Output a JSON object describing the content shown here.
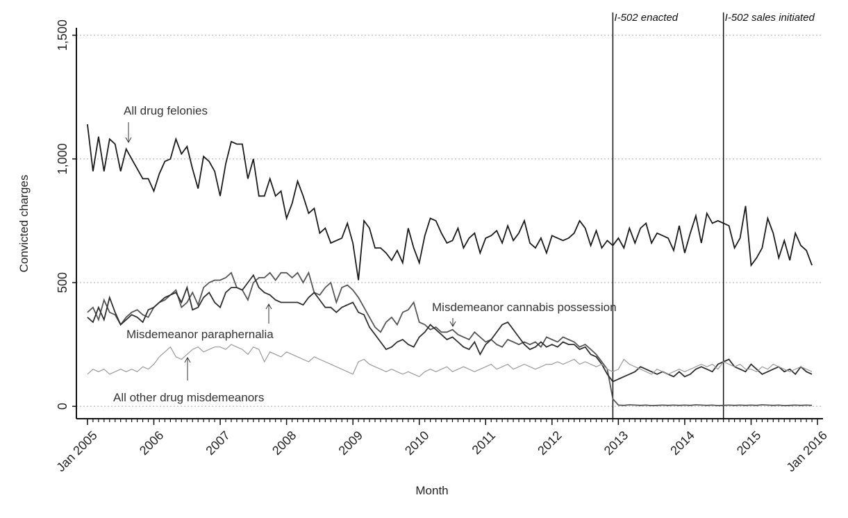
{
  "chart_data": {
    "type": "line",
    "xlabel": "Month",
    "ylabel": "Convicted charges",
    "x": [
      "2005-01",
      "2005-02",
      "2005-03",
      "2005-04",
      "2005-05",
      "2005-06",
      "2005-07",
      "2005-08",
      "2005-09",
      "2005-10",
      "2005-11",
      "2005-12",
      "2006-01",
      "2006-02",
      "2006-03",
      "2006-04",
      "2006-05",
      "2006-06",
      "2006-07",
      "2006-08",
      "2006-09",
      "2006-10",
      "2006-11",
      "2006-12",
      "2007-01",
      "2007-02",
      "2007-03",
      "2007-04",
      "2007-05",
      "2007-06",
      "2007-07",
      "2007-08",
      "2007-09",
      "2007-10",
      "2007-11",
      "2007-12",
      "2008-01",
      "2008-02",
      "2008-03",
      "2008-04",
      "2008-05",
      "2008-06",
      "2008-07",
      "2008-08",
      "2008-09",
      "2008-10",
      "2008-11",
      "2008-12",
      "2009-01",
      "2009-02",
      "2009-03",
      "2009-04",
      "2009-05",
      "2009-06",
      "2009-07",
      "2009-08",
      "2009-09",
      "2009-10",
      "2009-11",
      "2009-12",
      "2010-01",
      "2010-02",
      "2010-03",
      "2010-04",
      "2010-05",
      "2010-06",
      "2010-07",
      "2010-08",
      "2010-09",
      "2010-10",
      "2010-11",
      "2010-12",
      "2011-01",
      "2011-02",
      "2011-03",
      "2011-04",
      "2011-05",
      "2011-06",
      "2011-07",
      "2011-08",
      "2011-09",
      "2011-10",
      "2011-11",
      "2011-12",
      "2012-01",
      "2012-02",
      "2012-03",
      "2012-04",
      "2012-05",
      "2012-06",
      "2012-07",
      "2012-08",
      "2012-09",
      "2012-10",
      "2012-11",
      "2012-12",
      "2013-01",
      "2013-02",
      "2013-03",
      "2013-04",
      "2013-05",
      "2013-06",
      "2013-07",
      "2013-08",
      "2013-09",
      "2013-10",
      "2013-11",
      "2013-12",
      "2014-01",
      "2014-02",
      "2014-03",
      "2014-04",
      "2014-05",
      "2014-06",
      "2014-07",
      "2014-08",
      "2014-09",
      "2014-10",
      "2014-11",
      "2014-12",
      "2015-01",
      "2015-02",
      "2015-03",
      "2015-04",
      "2015-05",
      "2015-06",
      "2015-07",
      "2015-08",
      "2015-09",
      "2015-10",
      "2015-11",
      "2015-12"
    ],
    "series": [
      {
        "name": "All drug felonies",
        "color": "#1a1a1a",
        "values": [
          1140,
          950,
          1090,
          950,
          1080,
          1060,
          950,
          1040,
          1000,
          960,
          920,
          920,
          870,
          940,
          990,
          1000,
          1080,
          1020,
          1050,
          960,
          880,
          1010,
          990,
          950,
          850,
          980,
          1070,
          1060,
          1060,
          920,
          1000,
          850,
          850,
          920,
          850,
          870,
          760,
          820,
          910,
          850,
          780,
          800,
          700,
          720,
          660,
          670,
          680,
          740,
          660,
          510,
          750,
          720,
          640,
          640,
          620,
          590,
          630,
          580,
          720,
          640,
          580,
          690,
          760,
          750,
          700,
          660,
          670,
          720,
          640,
          680,
          700,
          620,
          680,
          690,
          710,
          660,
          730,
          670,
          700,
          750,
          660,
          640,
          680,
          620,
          690,
          680,
          670,
          680,
          700,
          750,
          720,
          650,
          710,
          640,
          670,
          650,
          680,
          640,
          720,
          660,
          720,
          740,
          660,
          700,
          690,
          680,
          630,
          730,
          620,
          700,
          770,
          660,
          780,
          740,
          750,
          740,
          730,
          640,
          680,
          810,
          570,
          600,
          640,
          760,
          700,
          600,
          670,
          590,
          700,
          650,
          630,
          570
        ]
      },
      {
        "name": "Misdemeanor cannabis possession",
        "color": "#555555",
        "values": [
          380,
          400,
          350,
          430,
          380,
          370,
          330,
          360,
          380,
          390,
          370,
          360,
          400,
          420,
          430,
          450,
          470,
          400,
          420,
          460,
          410,
          480,
          500,
          510,
          510,
          520,
          540,
          480,
          470,
          430,
          500,
          520,
          520,
          540,
          510,
          540,
          540,
          520,
          540,
          500,
          540,
          460,
          450,
          480,
          500,
          420,
          480,
          490,
          470,
          440,
          400,
          360,
          320,
          300,
          340,
          360,
          330,
          380,
          390,
          420,
          340,
          330,
          310,
          320,
          300,
          300,
          310,
          290,
          280,
          270,
          300,
          280,
          260,
          270,
          250,
          240,
          270,
          260,
          250,
          260,
          250,
          260,
          240,
          280,
          270,
          260,
          280,
          270,
          260,
          240,
          250,
          230,
          210,
          180,
          150,
          30,
          5,
          4,
          6,
          5,
          4,
          5,
          3,
          4,
          5,
          4,
          5,
          4,
          5,
          4,
          6,
          5,
          4,
          5,
          3,
          4,
          5,
          4,
          5,
          4,
          5,
          4,
          6,
          5,
          4,
          5,
          3,
          4,
          5,
          4,
          5,
          4
        ]
      },
      {
        "name": "Misdemeanor paraphernalia",
        "color": "#2e2e2e",
        "values": [
          360,
          340,
          400,
          350,
          440,
          380,
          330,
          350,
          370,
          360,
          340,
          390,
          400,
          420,
          440,
          450,
          460,
          420,
          480,
          390,
          400,
          440,
          460,
          420,
          400,
          460,
          480,
          480,
          470,
          500,
          530,
          480,
          460,
          450,
          430,
          420,
          420,
          420,
          420,
          410,
          440,
          460,
          430,
          400,
          400,
          380,
          400,
          410,
          420,
          380,
          370,
          320,
          290,
          260,
          230,
          240,
          260,
          270,
          250,
          240,
          280,
          300,
          330,
          310,
          290,
          270,
          280,
          260,
          240,
          230,
          260,
          210,
          250,
          270,
          300,
          330,
          340,
          310,
          280,
          250,
          230,
          240,
          260,
          240,
          250,
          240,
          260,
          250,
          250,
          230,
          240,
          210,
          200,
          170,
          130,
          100,
          110,
          120,
          130,
          140,
          160,
          150,
          140,
          130,
          140,
          130,
          120,
          140,
          120,
          130,
          150,
          160,
          150,
          140,
          170,
          180,
          190,
          160,
          150,
          140,
          170,
          150,
          130,
          140,
          150,
          160,
          140,
          150,
          130,
          160,
          140,
          130
        ]
      },
      {
        "name": "All other drug misdemeanors",
        "color": "#9a9a9a",
        "values": [
          130,
          150,
          140,
          150,
          130,
          140,
          150,
          140,
          150,
          140,
          160,
          150,
          170,
          200,
          220,
          240,
          200,
          190,
          210,
          230,
          240,
          220,
          230,
          240,
          240,
          230,
          250,
          240,
          230,
          210,
          240,
          230,
          180,
          220,
          210,
          200,
          220,
          210,
          200,
          190,
          180,
          200,
          190,
          180,
          170,
          160,
          150,
          140,
          130,
          180,
          190,
          170,
          160,
          150,
          140,
          150,
          140,
          130,
          140,
          130,
          120,
          140,
          150,
          140,
          150,
          160,
          140,
          150,
          160,
          150,
          140,
          150,
          160,
          170,
          150,
          160,
          170,
          150,
          160,
          170,
          160,
          150,
          160,
          170,
          170,
          180,
          170,
          180,
          190,
          170,
          180,
          170,
          160,
          170,
          150,
          140,
          150,
          190,
          170,
          160,
          150,
          140,
          130,
          150,
          140,
          130,
          140,
          150,
          140,
          150,
          160,
          170,
          160,
          170,
          150,
          180,
          170,
          160,
          170,
          150,
          150,
          140,
          160,
          150,
          170,
          160,
          150,
          140,
          150,
          160,
          150,
          140
        ]
      }
    ],
    "annotations": [
      {
        "x": "2012-12",
        "label": "I-502 enacted"
      },
      {
        "x": "2014-08",
        "label": "I-502 sales initiated"
      }
    ],
    "xlim": [
      "2004-11",
      "2016-02"
    ],
    "xticks": [
      {
        "value": "2005-01",
        "label": "Jan 2005"
      },
      {
        "value": "2006-01",
        "label": "2006"
      },
      {
        "value": "2007-01",
        "label": "2007"
      },
      {
        "value": "2008-01",
        "label": "2008"
      },
      {
        "value": "2009-01",
        "label": "2009"
      },
      {
        "value": "2010-01",
        "label": "2010"
      },
      {
        "value": "2011-01",
        "label": "2011"
      },
      {
        "value": "2012-01",
        "label": "2012"
      },
      {
        "value": "2013-01",
        "label": "2013"
      },
      {
        "value": "2014-01",
        "label": "2014"
      },
      {
        "value": "2015-01",
        "label": "2015"
      },
      {
        "value": "2016-01",
        "label": "Jan 2016"
      }
    ],
    "ylim": [
      -50,
      1530
    ],
    "yticks": [
      0,
      500,
      {
        "value": 1000,
        "label": "1,000"
      },
      {
        "value": 1500,
        "label": "1,500"
      }
    ],
    "grid": true
  }
}
